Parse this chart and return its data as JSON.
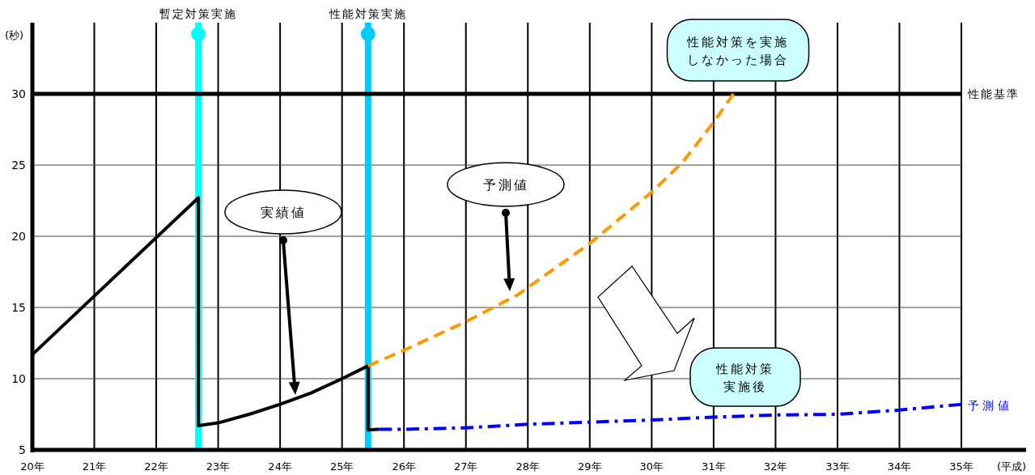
{
  "chart_data": {
    "type": "line",
    "xlabel": "(平成)",
    "ylabel": "(秒)",
    "xlim": [
      20,
      35
    ],
    "ylim": [
      5,
      35
    ],
    "xticks": [
      {
        "value": 20,
        "label": "20年"
      },
      {
        "value": 21,
        "label": "21年"
      },
      {
        "value": 22,
        "label": "22年"
      },
      {
        "value": 23,
        "label": "23年"
      },
      {
        "value": 24,
        "label": "24年"
      },
      {
        "value": 25,
        "label": "25年"
      },
      {
        "value": 26,
        "label": "26年"
      },
      {
        "value": 27,
        "label": "27年"
      },
      {
        "value": 28,
        "label": "28年"
      },
      {
        "value": 29,
        "label": "29年"
      },
      {
        "value": 30,
        "label": "30年"
      },
      {
        "value": 31,
        "label": "31年"
      },
      {
        "value": 32,
        "label": "32年"
      },
      {
        "value": 33,
        "label": "33年"
      },
      {
        "value": 34,
        "label": "34年"
      },
      {
        "value": 35,
        "label": "35年"
      }
    ],
    "yticks": [
      5,
      10,
      15,
      20,
      25,
      30
    ],
    "grid": true,
    "series": [
      {
        "color": "#000000",
        "line_style": "solid",
        "x": [
          20,
          22.68,
          22.68,
          23,
          23.5,
          24,
          24.5,
          25,
          25.42,
          25.42,
          25.6
        ],
        "values": [
          11.7,
          22.7,
          6.7,
          6.9,
          7.5,
          8.2,
          9.0,
          10.0,
          10.9,
          6.4,
          6.45
        ]
      },
      {
        "color": "#ff9900",
        "line_style": "dashed",
        "x": [
          25.42,
          26,
          27,
          27.84,
          29,
          30,
          30.5,
          31,
          31.32
        ],
        "values": [
          10.9,
          12.0,
          14.0,
          15.9,
          19.5,
          23.1,
          25.2,
          28.0,
          30.0
        ]
      },
      {
        "name": "予 測 値",
        "color": "#0000ff",
        "line_style": "dashdot",
        "x": [
          25.6,
          26,
          27,
          28,
          29,
          30,
          31,
          32,
          33,
          34,
          35
        ],
        "values": [
          6.45,
          6.45,
          6.55,
          6.8,
          6.95,
          7.1,
          7.3,
          7.45,
          7.5,
          7.8,
          8.2
        ]
      }
    ],
    "ref_lines": [
      {
        "axis": "x",
        "value": 22.68,
        "label": "暫定対策実施",
        "color": "#00ffff"
      },
      {
        "axis": "x",
        "value": 25.42,
        "label": "性能対策実施",
        "color": "#00ccff"
      },
      {
        "axis": "y",
        "value": 30,
        "label": "性能基準",
        "color": "#000000"
      }
    ],
    "annotations": [
      "実績値",
      "予測値",
      "性能対策を実施しなかった場合",
      "性能対策実施後"
    ]
  }
}
